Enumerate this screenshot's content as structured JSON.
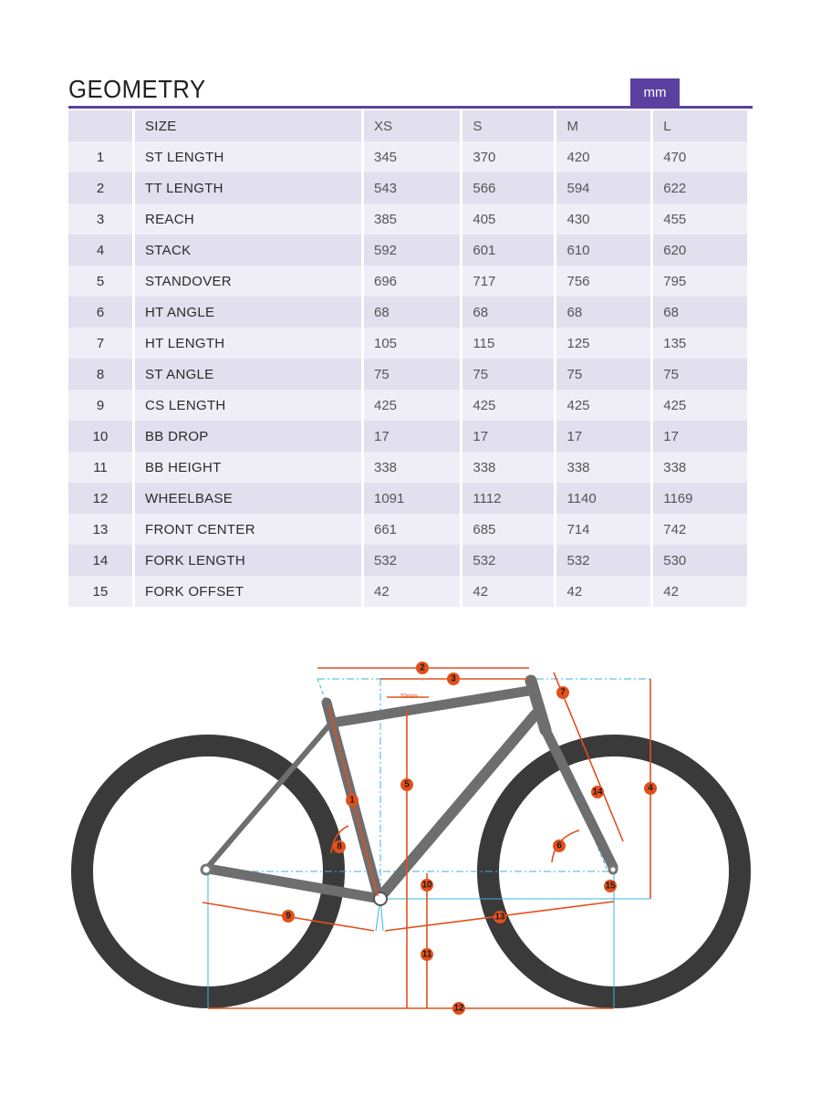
{
  "title": "GEOMETRY",
  "unit": "mm",
  "colors": {
    "accent": "#5c409f",
    "row_dark": "#e2dfee",
    "row_light": "#efedf6",
    "dimension": "#e2501c",
    "guide": "#3ab4dc",
    "frame": "#6e6e6e",
    "tire": "#3a3a3a"
  },
  "table": {
    "headers": [
      "",
      "SIZE",
      "XS",
      "S",
      "M",
      "L"
    ],
    "rows": [
      [
        "1",
        "ST LENGTH",
        "345",
        "370",
        "420",
        "470"
      ],
      [
        "2",
        "TT LENGTH",
        "543",
        "566",
        "594",
        "622"
      ],
      [
        "3",
        "REACH",
        "385",
        "405",
        "430",
        "455"
      ],
      [
        "4",
        "STACK",
        "592",
        "601",
        "610",
        "620"
      ],
      [
        "5",
        "STANDOVER",
        "696",
        "717",
        "756",
        "795"
      ],
      [
        "6",
        "HT ANGLE",
        "68",
        "68",
        "68",
        "68"
      ],
      [
        "7",
        "HT LENGTH",
        "105",
        "115",
        "125",
        "135"
      ],
      [
        "8",
        "ST ANGLE",
        "75",
        "75",
        "75",
        "75"
      ],
      [
        "9",
        "CS LENGTH",
        "425",
        "425",
        "425",
        "425"
      ],
      [
        "10",
        "BB DROP",
        "17",
        "17",
        "17",
        "17"
      ],
      [
        "11",
        "BB HEIGHT",
        "338",
        "338",
        "338",
        "338"
      ],
      [
        "12",
        "WHEELBASE",
        "1091",
        "1112",
        "1140",
        "1169"
      ],
      [
        "13",
        "FRONT CENTER",
        "661",
        "685",
        "714",
        "742"
      ],
      [
        "14",
        "FORK LENGTH",
        "532",
        "532",
        "532",
        "530"
      ],
      [
        "15",
        "FORK OFFSET",
        "42",
        "42",
        "42",
        "42"
      ]
    ]
  },
  "diagram": {
    "standover_note": "70mm",
    "markers": [
      "1",
      "2",
      "3",
      "4",
      "5",
      "6",
      "7",
      "8",
      "9",
      "10",
      "11",
      "12",
      "13",
      "14",
      "15"
    ]
  }
}
